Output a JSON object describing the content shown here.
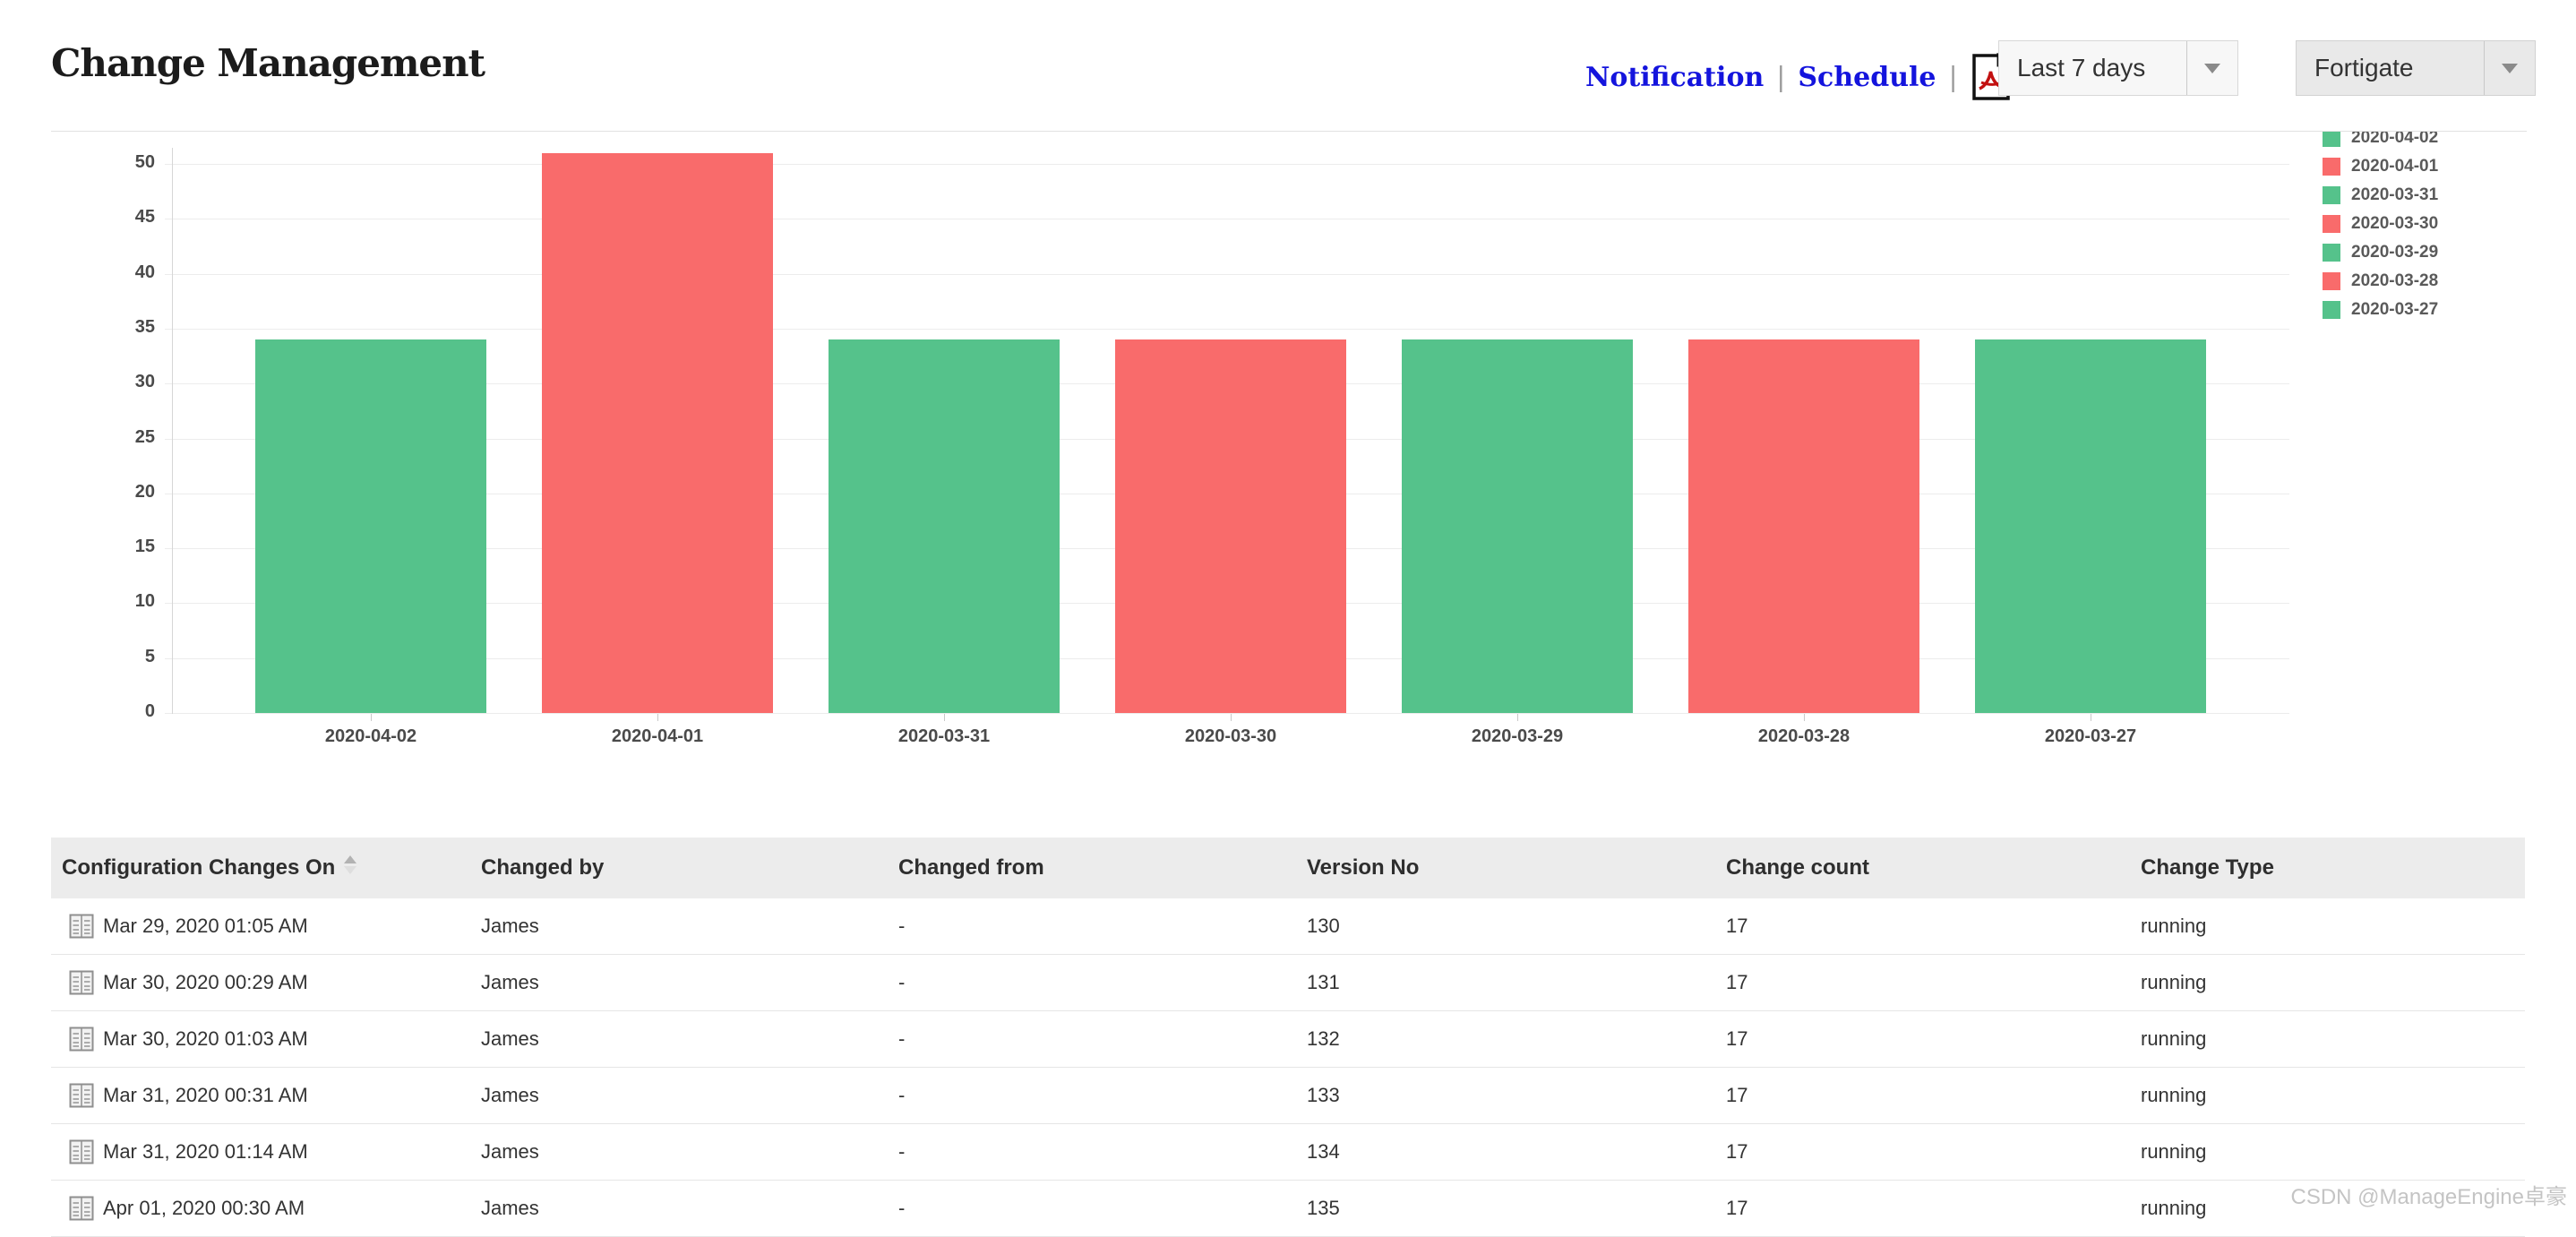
{
  "page_title": "Change Management",
  "toolbar": {
    "notification_label": "Notification",
    "schedule_label": "Schedule",
    "separator": "|",
    "pdf_icon": "pdf-export-icon",
    "period_dropdown_value": "Last 7 days",
    "device_dropdown_value": "Fortigate"
  },
  "chart_data": {
    "type": "bar",
    "title": "",
    "xlabel": "",
    "ylabel": "",
    "categories": [
      "2020-04-02",
      "2020-04-01",
      "2020-03-31",
      "2020-03-30",
      "2020-03-29",
      "2020-03-28",
      "2020-03-27"
    ],
    "values": [
      34,
      51,
      34,
      34,
      34,
      34,
      34
    ],
    "bar_colors": [
      "#55C28B",
      "#F96B6B",
      "#55C28B",
      "#F96B6B",
      "#55C28B",
      "#F96B6B",
      "#55C28B"
    ],
    "ylim": [
      0,
      50
    ],
    "ytick_step": 5,
    "grid": true,
    "legend_position": "right",
    "legend": [
      {
        "label": "2020-04-02",
        "color": "#55C28B"
      },
      {
        "label": "2020-04-01",
        "color": "#F96B6B"
      },
      {
        "label": "2020-03-31",
        "color": "#55C28B"
      },
      {
        "label": "2020-03-30",
        "color": "#F96B6B"
      },
      {
        "label": "2020-03-29",
        "color": "#55C28B"
      },
      {
        "label": "2020-03-28",
        "color": "#F96B6B"
      },
      {
        "label": "2020-03-27",
        "color": "#55C28B"
      }
    ]
  },
  "table": {
    "columns": [
      "Configuration Changes On",
      "Changed by",
      "Changed from",
      "Version No",
      "Change count",
      "Change Type"
    ],
    "sorted_column": "Configuration Changes On",
    "rows": [
      [
        "Mar 29, 2020 01:05 AM",
        "James",
        "-",
        "130",
        "17",
        "running"
      ],
      [
        "Mar 30, 2020 00:29 AM",
        "James",
        "-",
        "131",
        "17",
        "running"
      ],
      [
        "Mar 30, 2020 01:03 AM",
        "James",
        "-",
        "132",
        "17",
        "running"
      ],
      [
        "Mar 31, 2020 00:31 AM",
        "James",
        "-",
        "133",
        "17",
        "running"
      ],
      [
        "Mar 31, 2020 01:14 AM",
        "James",
        "-",
        "134",
        "17",
        "running"
      ],
      [
        "Apr 01, 2020 00:30 AM",
        "James",
        "-",
        "135",
        "17",
        "running"
      ]
    ]
  },
  "watermark": "CSDN @ManageEngine卓豪",
  "colors": {
    "green": "#55C28B",
    "red": "#F96B6B",
    "link_blue": "#1414DD"
  }
}
